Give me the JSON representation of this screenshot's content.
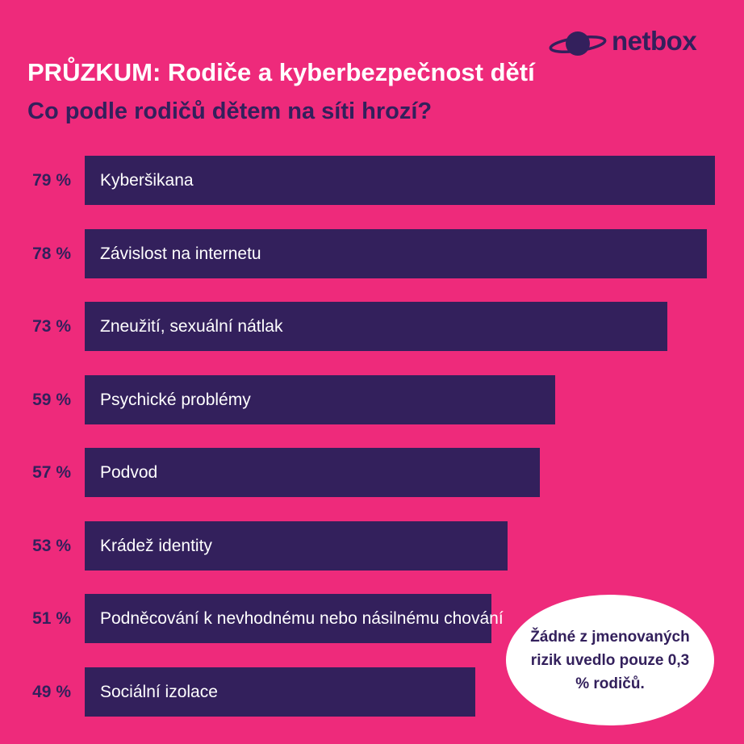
{
  "logo": {
    "text": "netbox",
    "icon": "planet-icon",
    "color": "#33205c"
  },
  "title": "PRŮZKUM: Rodiče a kyberbezpečnost dětí",
  "subtitle": "Co podle rodičů dětem na síti hrozí?",
  "colors": {
    "background": "#ee2a7b",
    "bar": "#33205c",
    "note_bg": "#ffffff"
  },
  "chart_data": {
    "type": "bar",
    "orientation": "horizontal",
    "categories": [
      "Kyberšikana",
      "Závislost na internetu",
      "Zneužití, sexuální nátlak",
      "Psychické problémy",
      "Podvod",
      "Krádež identity",
      "Podněcování k nevhodnému nebo násilnému chování",
      "Sociální izolace"
    ],
    "values": [
      79,
      78,
      73,
      59,
      57,
      53,
      51,
      49
    ],
    "value_labels": [
      "79 %",
      "78 %",
      "73 %",
      "59 %",
      "57 %",
      "53 %",
      "51 %",
      "49 %"
    ],
    "xlim": [
      0,
      79
    ],
    "grid": false
  },
  "note": "Žádné z jmenovaných rizik uvedlo pouze 0,3 % rodičů."
}
